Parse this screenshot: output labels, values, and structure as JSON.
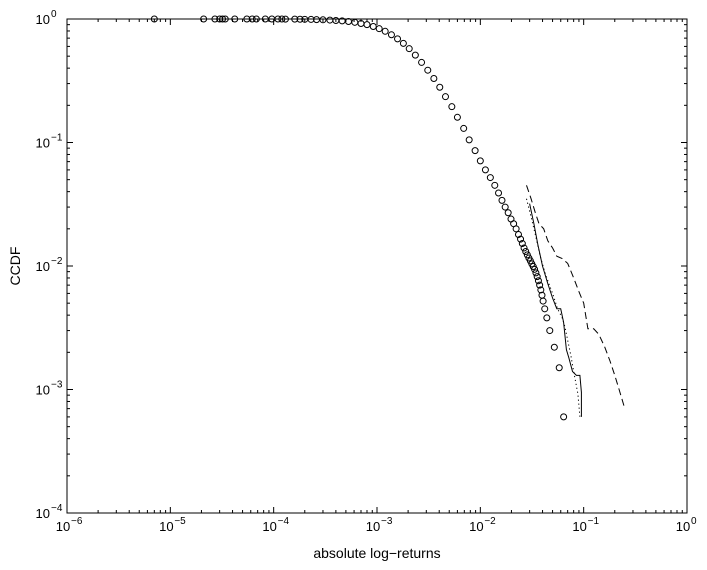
{
  "chart_data": {
    "type": "scatter",
    "title": "",
    "xlabel": "absolute log−returns",
    "ylabel": "CCDF",
    "xscale": "log",
    "yscale": "log",
    "xlim": [
      1e-06,
      1
    ],
    "ylim": [
      0.0001,
      1
    ],
    "grid": false,
    "legend": "none",
    "x_ticks": [
      {
        "value": 1e-06,
        "base": "10",
        "exp": "−6"
      },
      {
        "value": 1e-05,
        "base": "10",
        "exp": "−5"
      },
      {
        "value": 0.0001,
        "base": "10",
        "exp": "−4"
      },
      {
        "value": 0.001,
        "base": "10",
        "exp": "−3"
      },
      {
        "value": 0.01,
        "base": "10",
        "exp": "−2"
      },
      {
        "value": 0.1,
        "base": "10",
        "exp": "−1"
      },
      {
        "value": 1,
        "base": "10",
        "exp": "0"
      }
    ],
    "y_ticks": [
      {
        "value": 0.0001,
        "base": "10",
        "exp": "−4"
      },
      {
        "value": 0.001,
        "base": "10",
        "exp": "−3"
      },
      {
        "value": 0.01,
        "base": "10",
        "exp": "−2"
      },
      {
        "value": 0.1,
        "base": "10",
        "exp": "−1"
      },
      {
        "value": 1,
        "base": "10",
        "exp": "0"
      }
    ],
    "series": [
      {
        "style": "markers",
        "marker": "circle-open",
        "color": "#000000",
        "x": [
          7e-06,
          2.1e-05,
          2.7e-05,
          3e-05,
          3.2e-05,
          3.4e-05,
          4.2e-05,
          5.5e-05,
          6.2e-05,
          6.8e-05,
          8.3e-05,
          9.6e-05,
          0.00011,
          0.00012,
          0.00013,
          0.00016,
          0.00018,
          0.0002,
          0.00023,
          0.00026,
          0.0003,
          0.00035,
          0.0004,
          0.00046,
          0.00053,
          0.00061,
          0.0007,
          0.0008,
          0.00092,
          0.00105,
          0.0012,
          0.00138,
          0.00158,
          0.0018,
          0.00205,
          0.00235,
          0.0027,
          0.0031,
          0.00355,
          0.00405,
          0.0046,
          0.0053,
          0.006,
          0.0069,
          0.0078,
          0.0089,
          0.01,
          0.0112,
          0.0125,
          0.0138,
          0.015,
          0.0162,
          0.0174,
          0.0186,
          0.0198,
          0.021,
          0.0222,
          0.0234,
          0.0245,
          0.0255,
          0.0265,
          0.0275,
          0.0285,
          0.0295,
          0.0305,
          0.0315,
          0.0325,
          0.0335,
          0.0345,
          0.0355,
          0.0365,
          0.0375,
          0.0385,
          0.0395,
          0.0405,
          0.042,
          0.044,
          0.047,
          0.052,
          0.058,
          0.064
        ],
        "y": [
          1.0,
          1.0,
          1.0,
          1.0,
          1.0,
          1.0,
          1.0,
          1.0,
          1.0,
          1.0,
          1.0,
          1.0,
          1.0,
          1.0,
          0.998,
          0.997,
          0.996,
          0.994,
          0.992,
          0.989,
          0.985,
          0.98,
          0.973,
          0.965,
          0.955,
          0.94,
          0.92,
          0.9,
          0.87,
          0.835,
          0.795,
          0.745,
          0.69,
          0.635,
          0.575,
          0.51,
          0.445,
          0.385,
          0.33,
          0.28,
          0.235,
          0.195,
          0.16,
          0.13,
          0.105,
          0.086,
          0.071,
          0.06,
          0.052,
          0.045,
          0.039,
          0.034,
          0.03,
          0.027,
          0.024,
          0.022,
          0.02,
          0.018,
          0.0165,
          0.0152,
          0.014,
          0.0131,
          0.0123,
          0.0116,
          0.011,
          0.0104,
          0.0099,
          0.0094,
          0.0088,
          0.0082,
          0.0076,
          0.007,
          0.0064,
          0.0058,
          0.0052,
          0.0045,
          0.0038,
          0.003,
          0.0022,
          0.0015,
          0.0006
        ]
      },
      {
        "style": "solid",
        "color": "#000000",
        "x": [
          0.03,
          0.033,
          0.036,
          0.04,
          0.045,
          0.05,
          0.055,
          0.06,
          0.064,
          0.068,
          0.072,
          0.078,
          0.085,
          0.092,
          0.095,
          0.095
        ],
        "y": [
          0.032,
          0.022,
          0.015,
          0.01,
          0.0072,
          0.0055,
          0.0045,
          0.0045,
          0.0035,
          0.0021,
          0.0018,
          0.0014,
          0.0013,
          0.0013,
          0.00095,
          0.0006
        ]
      },
      {
        "style": "dotted",
        "color": "#000000",
        "x": [
          0.028,
          0.031,
          0.034,
          0.038,
          0.042,
          0.046,
          0.05,
          0.056,
          0.062,
          0.066,
          0.07,
          0.075,
          0.08,
          0.088,
          0.092
        ],
        "y": [
          0.035,
          0.025,
          0.018,
          0.012,
          0.009,
          0.0072,
          0.006,
          0.0045,
          0.0038,
          0.0032,
          0.0025,
          0.0019,
          0.0014,
          0.00092,
          0.0006
        ]
      },
      {
        "style": "dashed",
        "color": "#000000",
        "x": [
          0.028,
          0.031,
          0.034,
          0.037,
          0.041,
          0.045,
          0.05,
          0.055,
          0.062,
          0.07,
          0.08,
          0.09,
          0.1,
          0.11,
          0.125,
          0.14,
          0.16,
          0.18,
          0.2,
          0.22,
          0.25
        ],
        "y": [
          0.045,
          0.035,
          0.027,
          0.022,
          0.02,
          0.016,
          0.014,
          0.012,
          0.0115,
          0.0105,
          0.008,
          0.0062,
          0.005,
          0.0031,
          0.0031,
          0.0028,
          0.0022,
          0.0017,
          0.0013,
          0.001,
          0.0007
        ]
      }
    ]
  }
}
